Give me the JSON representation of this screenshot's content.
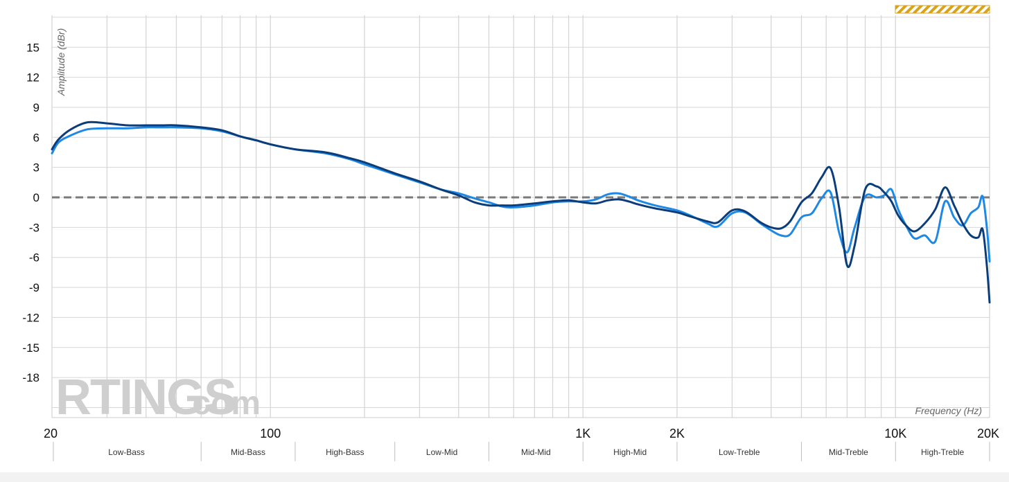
{
  "chart_data": {
    "type": "line",
    "ylabel": "Amplitude (dBr)",
    "xlabel": "Frequency (Hz)",
    "x_scale": "log",
    "xlim": [
      20,
      20000
    ],
    "ylim": [
      -21,
      18.5
    ],
    "y_ticks": [
      15,
      12,
      9,
      6,
      3,
      0,
      -3,
      -6,
      -9,
      -12,
      -15,
      -18
    ],
    "x_tick_labels": [
      {
        "x": 20,
        "label": "20"
      },
      {
        "x": 100,
        "label": "100"
      },
      {
        "x": 1000,
        "label": "1K"
      },
      {
        "x": 2000,
        "label": "2K"
      },
      {
        "x": 10000,
        "label": "10K"
      },
      {
        "x": 20000,
        "label": "20K"
      }
    ],
    "x_gridlines": [
      20,
      30,
      40,
      50,
      60,
      70,
      80,
      90,
      100,
      200,
      300,
      400,
      500,
      600,
      700,
      800,
      900,
      1000,
      2000,
      3000,
      4000,
      5000,
      6000,
      7000,
      8000,
      9000,
      10000,
      20000
    ],
    "grid": true,
    "target_line": {
      "y": 0,
      "color": "#7a7a7a",
      "style": "dashed"
    },
    "bands": [
      {
        "label": "Low-Bass",
        "from": 20,
        "to": 60
      },
      {
        "label": "Mid-Bass",
        "from": 60,
        "to": 120
      },
      {
        "label": "High-Bass",
        "from": 120,
        "to": 250
      },
      {
        "label": "Low-Mid",
        "from": 250,
        "to": 500
      },
      {
        "label": "Mid-Mid",
        "from": 500,
        "to": 1000
      },
      {
        "label": "High-Mid",
        "from": 1000,
        "to": 2000
      },
      {
        "label": "Low-Treble",
        "from": 2000,
        "to": 5000
      },
      {
        "label": "Mid-Treble",
        "from": 5000,
        "to": 10000
      },
      {
        "label": "High-Treble",
        "from": 10000,
        "to": 20000
      }
    ],
    "series": [
      {
        "color": "#1e88e5",
        "width": 3,
        "points": [
          [
            20,
            4.4
          ],
          [
            21,
            5.5
          ],
          [
            23,
            6.2
          ],
          [
            26,
            6.8
          ],
          [
            30,
            6.9
          ],
          [
            35,
            6.9
          ],
          [
            40,
            7.0
          ],
          [
            45,
            7.0
          ],
          [
            50,
            7.0
          ],
          [
            60,
            6.9
          ],
          [
            70,
            6.6
          ],
          [
            80,
            6.1
          ],
          [
            90,
            5.7
          ],
          [
            100,
            5.3
          ],
          [
            120,
            4.8
          ],
          [
            150,
            4.4
          ],
          [
            180,
            3.8
          ],
          [
            200,
            3.3
          ],
          [
            250,
            2.3
          ],
          [
            300,
            1.5
          ],
          [
            350,
            0.8
          ],
          [
            400,
            0.4
          ],
          [
            450,
            -0.1
          ],
          [
            500,
            -0.5
          ],
          [
            550,
            -0.9
          ],
          [
            600,
            -1.0
          ],
          [
            700,
            -0.8
          ],
          [
            800,
            -0.5
          ],
          [
            900,
            -0.4
          ],
          [
            1000,
            -0.4
          ],
          [
            1100,
            -0.2
          ],
          [
            1200,
            0.3
          ],
          [
            1300,
            0.4
          ],
          [
            1400,
            0.1
          ],
          [
            1500,
            -0.3
          ],
          [
            1700,
            -0.8
          ],
          [
            2000,
            -1.3
          ],
          [
            2200,
            -1.8
          ],
          [
            2500,
            -2.6
          ],
          [
            2700,
            -2.9
          ],
          [
            3000,
            -1.6
          ],
          [
            3300,
            -1.5
          ],
          [
            3700,
            -2.6
          ],
          [
            4000,
            -3.3
          ],
          [
            4300,
            -3.8
          ],
          [
            4600,
            -3.7
          ],
          [
            5000,
            -2.0
          ],
          [
            5400,
            -1.6
          ],
          [
            5800,
            -0.1
          ],
          [
            6200,
            0.5
          ],
          [
            6600,
            -3.5
          ],
          [
            7000,
            -5.5
          ],
          [
            7400,
            -3.0
          ],
          [
            8000,
            0.1
          ],
          [
            8700,
            0.0
          ],
          [
            9200,
            0.2
          ],
          [
            9700,
            0.8
          ],
          [
            10200,
            -1.2
          ],
          [
            10800,
            -2.8
          ],
          [
            11500,
            -4.1
          ],
          [
            12400,
            -3.8
          ],
          [
            13400,
            -4.4
          ],
          [
            14400,
            -0.4
          ],
          [
            15400,
            -2.0
          ],
          [
            16400,
            -2.8
          ],
          [
            17400,
            -1.6
          ],
          [
            18400,
            -1.0
          ],
          [
            19000,
            0.1
          ],
          [
            19600,
            -3.0
          ],
          [
            20000,
            -6.4
          ]
        ]
      },
      {
        "color": "#0b3d7a",
        "width": 3,
        "points": [
          [
            20,
            4.8
          ],
          [
            21,
            5.8
          ],
          [
            23,
            6.8
          ],
          [
            26,
            7.5
          ],
          [
            30,
            7.4
          ],
          [
            35,
            7.2
          ],
          [
            40,
            7.2
          ],
          [
            45,
            7.2
          ],
          [
            50,
            7.2
          ],
          [
            60,
            7.0
          ],
          [
            70,
            6.7
          ],
          [
            80,
            6.1
          ],
          [
            90,
            5.7
          ],
          [
            100,
            5.3
          ],
          [
            120,
            4.8
          ],
          [
            150,
            4.5
          ],
          [
            180,
            3.9
          ],
          [
            200,
            3.5
          ],
          [
            250,
            2.4
          ],
          [
            300,
            1.6
          ],
          [
            350,
            0.8
          ],
          [
            400,
            0.2
          ],
          [
            450,
            -0.5
          ],
          [
            500,
            -0.8
          ],
          [
            550,
            -0.8
          ],
          [
            600,
            -0.8
          ],
          [
            700,
            -0.6
          ],
          [
            800,
            -0.4
          ],
          [
            900,
            -0.3
          ],
          [
            1000,
            -0.5
          ],
          [
            1100,
            -0.6
          ],
          [
            1200,
            -0.3
          ],
          [
            1300,
            -0.2
          ],
          [
            1400,
            -0.4
          ],
          [
            1500,
            -0.7
          ],
          [
            1700,
            -1.1
          ],
          [
            2000,
            -1.5
          ],
          [
            2200,
            -1.9
          ],
          [
            2500,
            -2.4
          ],
          [
            2700,
            -2.5
          ],
          [
            3000,
            -1.3
          ],
          [
            3300,
            -1.4
          ],
          [
            3700,
            -2.5
          ],
          [
            4000,
            -3.0
          ],
          [
            4300,
            -3.1
          ],
          [
            4600,
            -2.4
          ],
          [
            5000,
            -0.5
          ],
          [
            5400,
            0.4
          ],
          [
            5800,
            2.0
          ],
          [
            6200,
            2.9
          ],
          [
            6600,
            -1.0
          ],
          [
            7000,
            -6.8
          ],
          [
            7400,
            -4.8
          ],
          [
            8000,
            0.8
          ],
          [
            8700,
            1.1
          ],
          [
            9200,
            0.5
          ],
          [
            9700,
            -0.4
          ],
          [
            10200,
            -1.8
          ],
          [
            10800,
            -2.8
          ],
          [
            11500,
            -3.4
          ],
          [
            12400,
            -2.6
          ],
          [
            13400,
            -1.2
          ],
          [
            14400,
            1.0
          ],
          [
            15400,
            -0.8
          ],
          [
            16400,
            -2.6
          ],
          [
            17400,
            -3.8
          ],
          [
            18400,
            -4.0
          ],
          [
            19000,
            -3.2
          ],
          [
            19600,
            -6.8
          ],
          [
            20000,
            -10.5
          ]
        ]
      }
    ]
  },
  "watermark": {
    "brand": "RTINGS",
    "suffix": ".com"
  }
}
